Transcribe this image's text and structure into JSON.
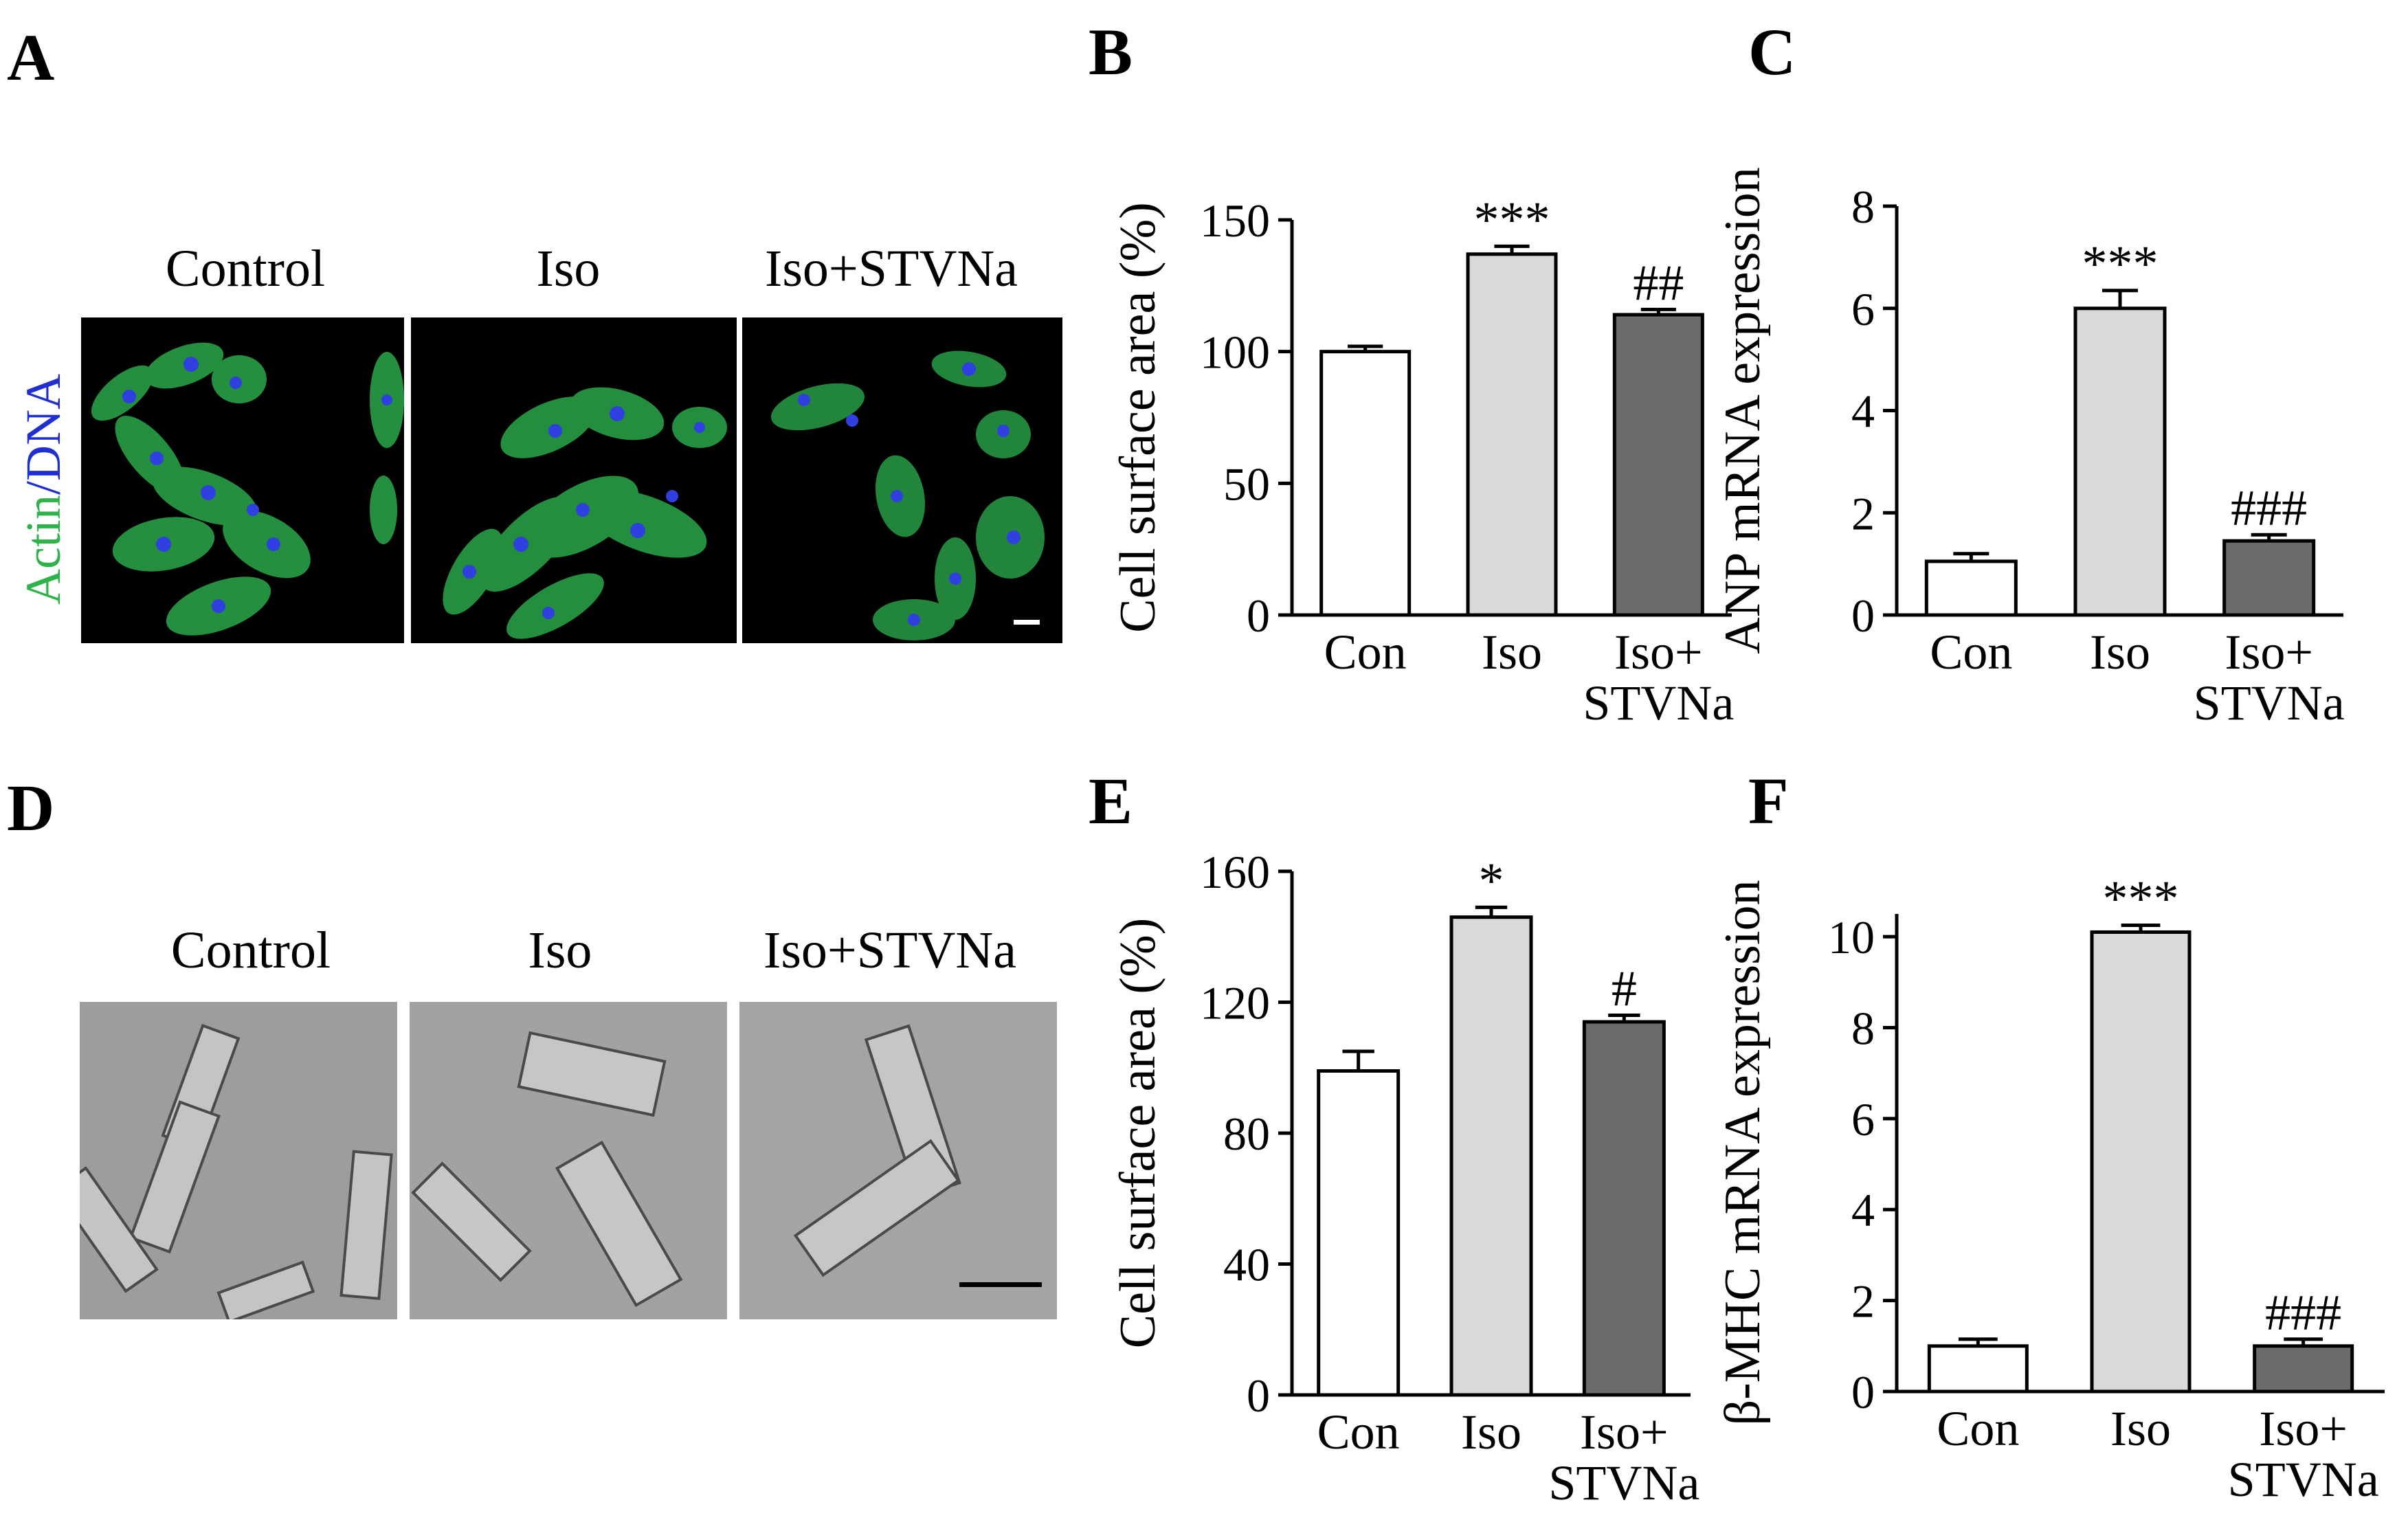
{
  "panels": {
    "a": {
      "letter": "A",
      "labels": [
        "Control",
        "Iso",
        "Iso+STVNa"
      ],
      "stain": {
        "actin": "Actin",
        "slash": "/",
        "dna": "DNA"
      }
    },
    "d": {
      "letter": "D",
      "labels": [
        "Control",
        "Iso",
        "Iso+STVNa"
      ]
    }
  },
  "colors": {
    "con": "#ffffff",
    "iso": "#d9d9d9",
    "iso_stvna": "#6b6b6b",
    "actin": "#2db34a",
    "dna": "#1f2fd1"
  },
  "chart_data": [
    {
      "id": "B",
      "type": "bar",
      "categories": [
        "Con",
        "Iso",
        "Iso+\nSTVNa"
      ],
      "values": [
        100,
        137,
        114
      ],
      "errors": [
        2,
        3,
        2
      ],
      "annotations": [
        "",
        "***",
        "##"
      ],
      "ylabel": "Cell surface area (%)",
      "ylim": [
        0,
        150
      ],
      "yticks": [
        0,
        50,
        100,
        150
      ]
    },
    {
      "id": "C",
      "type": "bar",
      "categories": [
        "Con",
        "Iso",
        "Iso+\nSTVNa"
      ],
      "values": [
        1.05,
        6.0,
        1.45
      ],
      "errors": [
        0.15,
        0.35,
        0.12
      ],
      "annotations": [
        "",
        "***",
        "###"
      ],
      "ylabel": "ANP mRNA expression",
      "ylim": [
        0,
        8
      ],
      "yticks": [
        0,
        2,
        4,
        6,
        8
      ]
    },
    {
      "id": "E",
      "type": "bar",
      "categories": [
        "Con",
        "Iso",
        "Iso+\nSTVNa"
      ],
      "values": [
        99,
        146,
        114
      ],
      "errors": [
        6,
        3,
        2
      ],
      "annotations": [
        "",
        "*",
        "#"
      ],
      "ylabel": "Cell surface area (%)",
      "ylim": [
        0,
        160
      ],
      "yticks": [
        0,
        40,
        80,
        120,
        160
      ]
    },
    {
      "id": "F",
      "type": "bar",
      "categories": [
        "Con",
        "Iso",
        "Iso+\nSTVNa"
      ],
      "values": [
        1.0,
        10.1,
        1.0
      ],
      "errors": [
        0.15,
        0.15,
        0.15
      ],
      "annotations": [
        "",
        "***",
        "###"
      ],
      "ylabel": "β-MHC mRNA expression",
      "ylim": [
        0,
        10.5
      ],
      "yticks": [
        0,
        2,
        4,
        6,
        8,
        10
      ]
    }
  ]
}
